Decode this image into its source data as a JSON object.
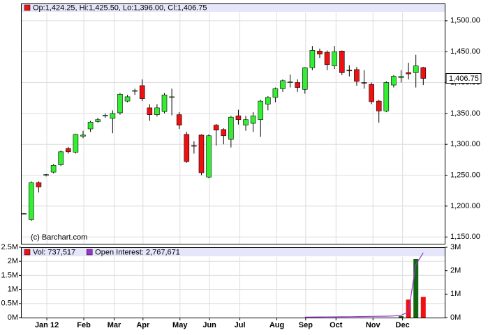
{
  "chart_data": [
    {
      "type": "candlestick",
      "header": "Op:1,424.25, Hi:1,425.50, Lo:1,396.00, Cl:1,406.75",
      "header_color": "#ee1111",
      "watermark": "(c) Barchart.com",
      "up_color": "#33ee33",
      "down_color": "#ee1111",
      "x": [
        0,
        1,
        2,
        3,
        4,
        5,
        6,
        7,
        8,
        9,
        10,
        11,
        12,
        13,
        14,
        15,
        16,
        17,
        18,
        19,
        20,
        21,
        22,
        23,
        24,
        25,
        26,
        27,
        28,
        29,
        30,
        31,
        32,
        33,
        34,
        35,
        36,
        37,
        38,
        39,
        40,
        41,
        42,
        43,
        44,
        45,
        46,
        47,
        48,
        49,
        50,
        51,
        52,
        53,
        54
      ],
      "open": [
        1188,
        1178,
        1238,
        1250,
        1255,
        1267,
        1293,
        1287,
        1313,
        1325,
        1337,
        1346,
        1342,
        1351,
        1370,
        1386,
        1395,
        1359,
        1348,
        1353,
        1376,
        1348,
        1316,
        1298,
        1315,
        1247,
        1331,
        1324,
        1308,
        1346,
        1331,
        1334,
        1340,
        1365,
        1376,
        1390,
        1400,
        1400,
        1389,
        1424,
        1451,
        1449,
        1427,
        1451,
        1420,
        1421,
        1400,
        1397,
        1370,
        1354,
        1396,
        1408,
        1416,
        1416,
        1424.25
      ],
      "high": [
        1189,
        1240,
        1240,
        1252,
        1268,
        1290,
        1296,
        1317,
        1322,
        1338,
        1343,
        1350,
        1355,
        1383,
        1380,
        1390,
        1405,
        1365,
        1365,
        1383,
        1390,
        1352,
        1320,
        1305,
        1316,
        1316,
        1333,
        1326,
        1346,
        1356,
        1346,
        1352,
        1372,
        1378,
        1392,
        1405,
        1413,
        1405,
        1425,
        1459,
        1455,
        1452,
        1459,
        1452,
        1428,
        1425,
        1420,
        1400,
        1372,
        1402,
        1412,
        1420,
        1432,
        1445,
        1425.5
      ],
      "low": [
        1187,
        1176,
        1222,
        1248,
        1253,
        1265,
        1285,
        1285,
        1310,
        1320,
        1335,
        1343,
        1318,
        1348,
        1368,
        1380,
        1370,
        1338,
        1345,
        1350,
        1347,
        1325,
        1270,
        1285,
        1250,
        1245,
        1298,
        1300,
        1295,
        1332,
        1322,
        1320,
        1312,
        1355,
        1368,
        1385,
        1392,
        1385,
        1382,
        1420,
        1440,
        1420,
        1422,
        1412,
        1410,
        1395,
        1390,
        1365,
        1335,
        1352,
        1392,
        1400,
        1405,
        1392,
        1396
      ],
      "close": [
        1188,
        1238,
        1231,
        1251,
        1266,
        1288,
        1288,
        1316,
        1315,
        1336,
        1340,
        1347,
        1350,
        1381,
        1377,
        1387,
        1374,
        1348,
        1359,
        1380,
        1377,
        1331,
        1272,
        1297,
        1254,
        1314,
        1323,
        1314,
        1344,
        1340,
        1340,
        1346,
        1370,
        1376,
        1390,
        1403,
        1401,
        1392,
        1424,
        1452,
        1446,
        1429,
        1450,
        1416,
        1419,
        1402,
        1399,
        1369,
        1354,
        1400,
        1410,
        1410,
        1414,
        1427,
        1406.75
      ],
      "xlim": [
        -0.4,
        56.9
      ],
      "ylim": [
        1139,
        1528
      ],
      "yticks": [
        {
          "value": 1150,
          "label": "1,150.00"
        },
        {
          "value": 1200,
          "label": "1,200.00"
        },
        {
          "value": 1250,
          "label": "1,250.00"
        },
        {
          "value": 1300,
          "label": "1,300.00"
        },
        {
          "value": 1350,
          "label": "1,350.00"
        },
        {
          "value": 1400,
          "label": "1,400.00"
        },
        {
          "value": 1450,
          "label": "1,450.00"
        },
        {
          "value": 1500,
          "label": "1,500.00"
        }
      ],
      "last_price": {
        "value": 1406.75,
        "label": "1,406.75"
      },
      "grid": true
    },
    {
      "type": "volume",
      "series": [
        {
          "name": "Vol: 737,517",
          "color": "#ee1111",
          "kind": "bar",
          "values": [
            null,
            null,
            null,
            null,
            null,
            null,
            null,
            null,
            null,
            null,
            null,
            null,
            null,
            null,
            null,
            null,
            null,
            null,
            null,
            null,
            null,
            null,
            null,
            null,
            null,
            null,
            null,
            null,
            null,
            null,
            null,
            null,
            null,
            null,
            null,
            null,
            null,
            null,
            null,
            null,
            null,
            null,
            null,
            null,
            null,
            null,
            null,
            null,
            null,
            null,
            null,
            50000,
            640000,
            2080000,
            737517
          ]
        },
        {
          "name": "Open Interest: 2,767,671",
          "color": "#9933cc",
          "kind": "line",
          "axis": "y2",
          "values": [
            null,
            null,
            null,
            null,
            null,
            null,
            null,
            null,
            null,
            null,
            null,
            null,
            null,
            null,
            null,
            null,
            null,
            null,
            null,
            null,
            null,
            null,
            null,
            null,
            null,
            null,
            null,
            null,
            null,
            null,
            null,
            null,
            null,
            null,
            null,
            null,
            null,
            null,
            20000,
            22000,
            25000,
            28000,
            30000,
            33000,
            36000,
            40000,
            45000,
            50000,
            55000,
            60000,
            70000,
            100000,
            240000,
            2260000,
            2767671
          ]
        }
      ],
      "up_color": "#116611",
      "down_color": "#ee1111",
      "ylim": [
        0,
        2500000
      ],
      "yticks": [
        {
          "value": 0,
          "label": "0M"
        },
        {
          "value": 500000,
          "label": "0.5M"
        },
        {
          "value": 1000000,
          "label": "1M"
        },
        {
          "value": 1500000,
          "label": "1.5M"
        },
        {
          "value": 2000000,
          "label": "2M"
        },
        {
          "value": 2500000,
          "label": "2.5M"
        }
      ],
      "y2lim": [
        0,
        3000000
      ],
      "y2ticks": [
        {
          "value": 0,
          "label": "0M"
        },
        {
          "value": 1000000,
          "label": "1M"
        },
        {
          "value": 2000000,
          "label": "2M"
        },
        {
          "value": 3000000,
          "label": "3M"
        }
      ],
      "xticks": [
        {
          "value": 3.1,
          "label": "Jan 12"
        },
        {
          "value": 8.1,
          "label": "Feb"
        },
        {
          "value": 12.2,
          "label": "Mar"
        },
        {
          "value": 16.1,
          "label": "Apr"
        },
        {
          "value": 21.1,
          "label": "May"
        },
        {
          "value": 25.1,
          "label": "Jun"
        },
        {
          "value": 29.2,
          "label": "Jul"
        },
        {
          "value": 34.2,
          "label": "Aug"
        },
        {
          "value": 38.1,
          "label": "Sep"
        },
        {
          "value": 42.2,
          "label": "Oct"
        },
        {
          "value": 47.2,
          "label": "Nov"
        },
        {
          "value": 51.2,
          "label": "Dec"
        }
      ],
      "grid": true
    }
  ]
}
